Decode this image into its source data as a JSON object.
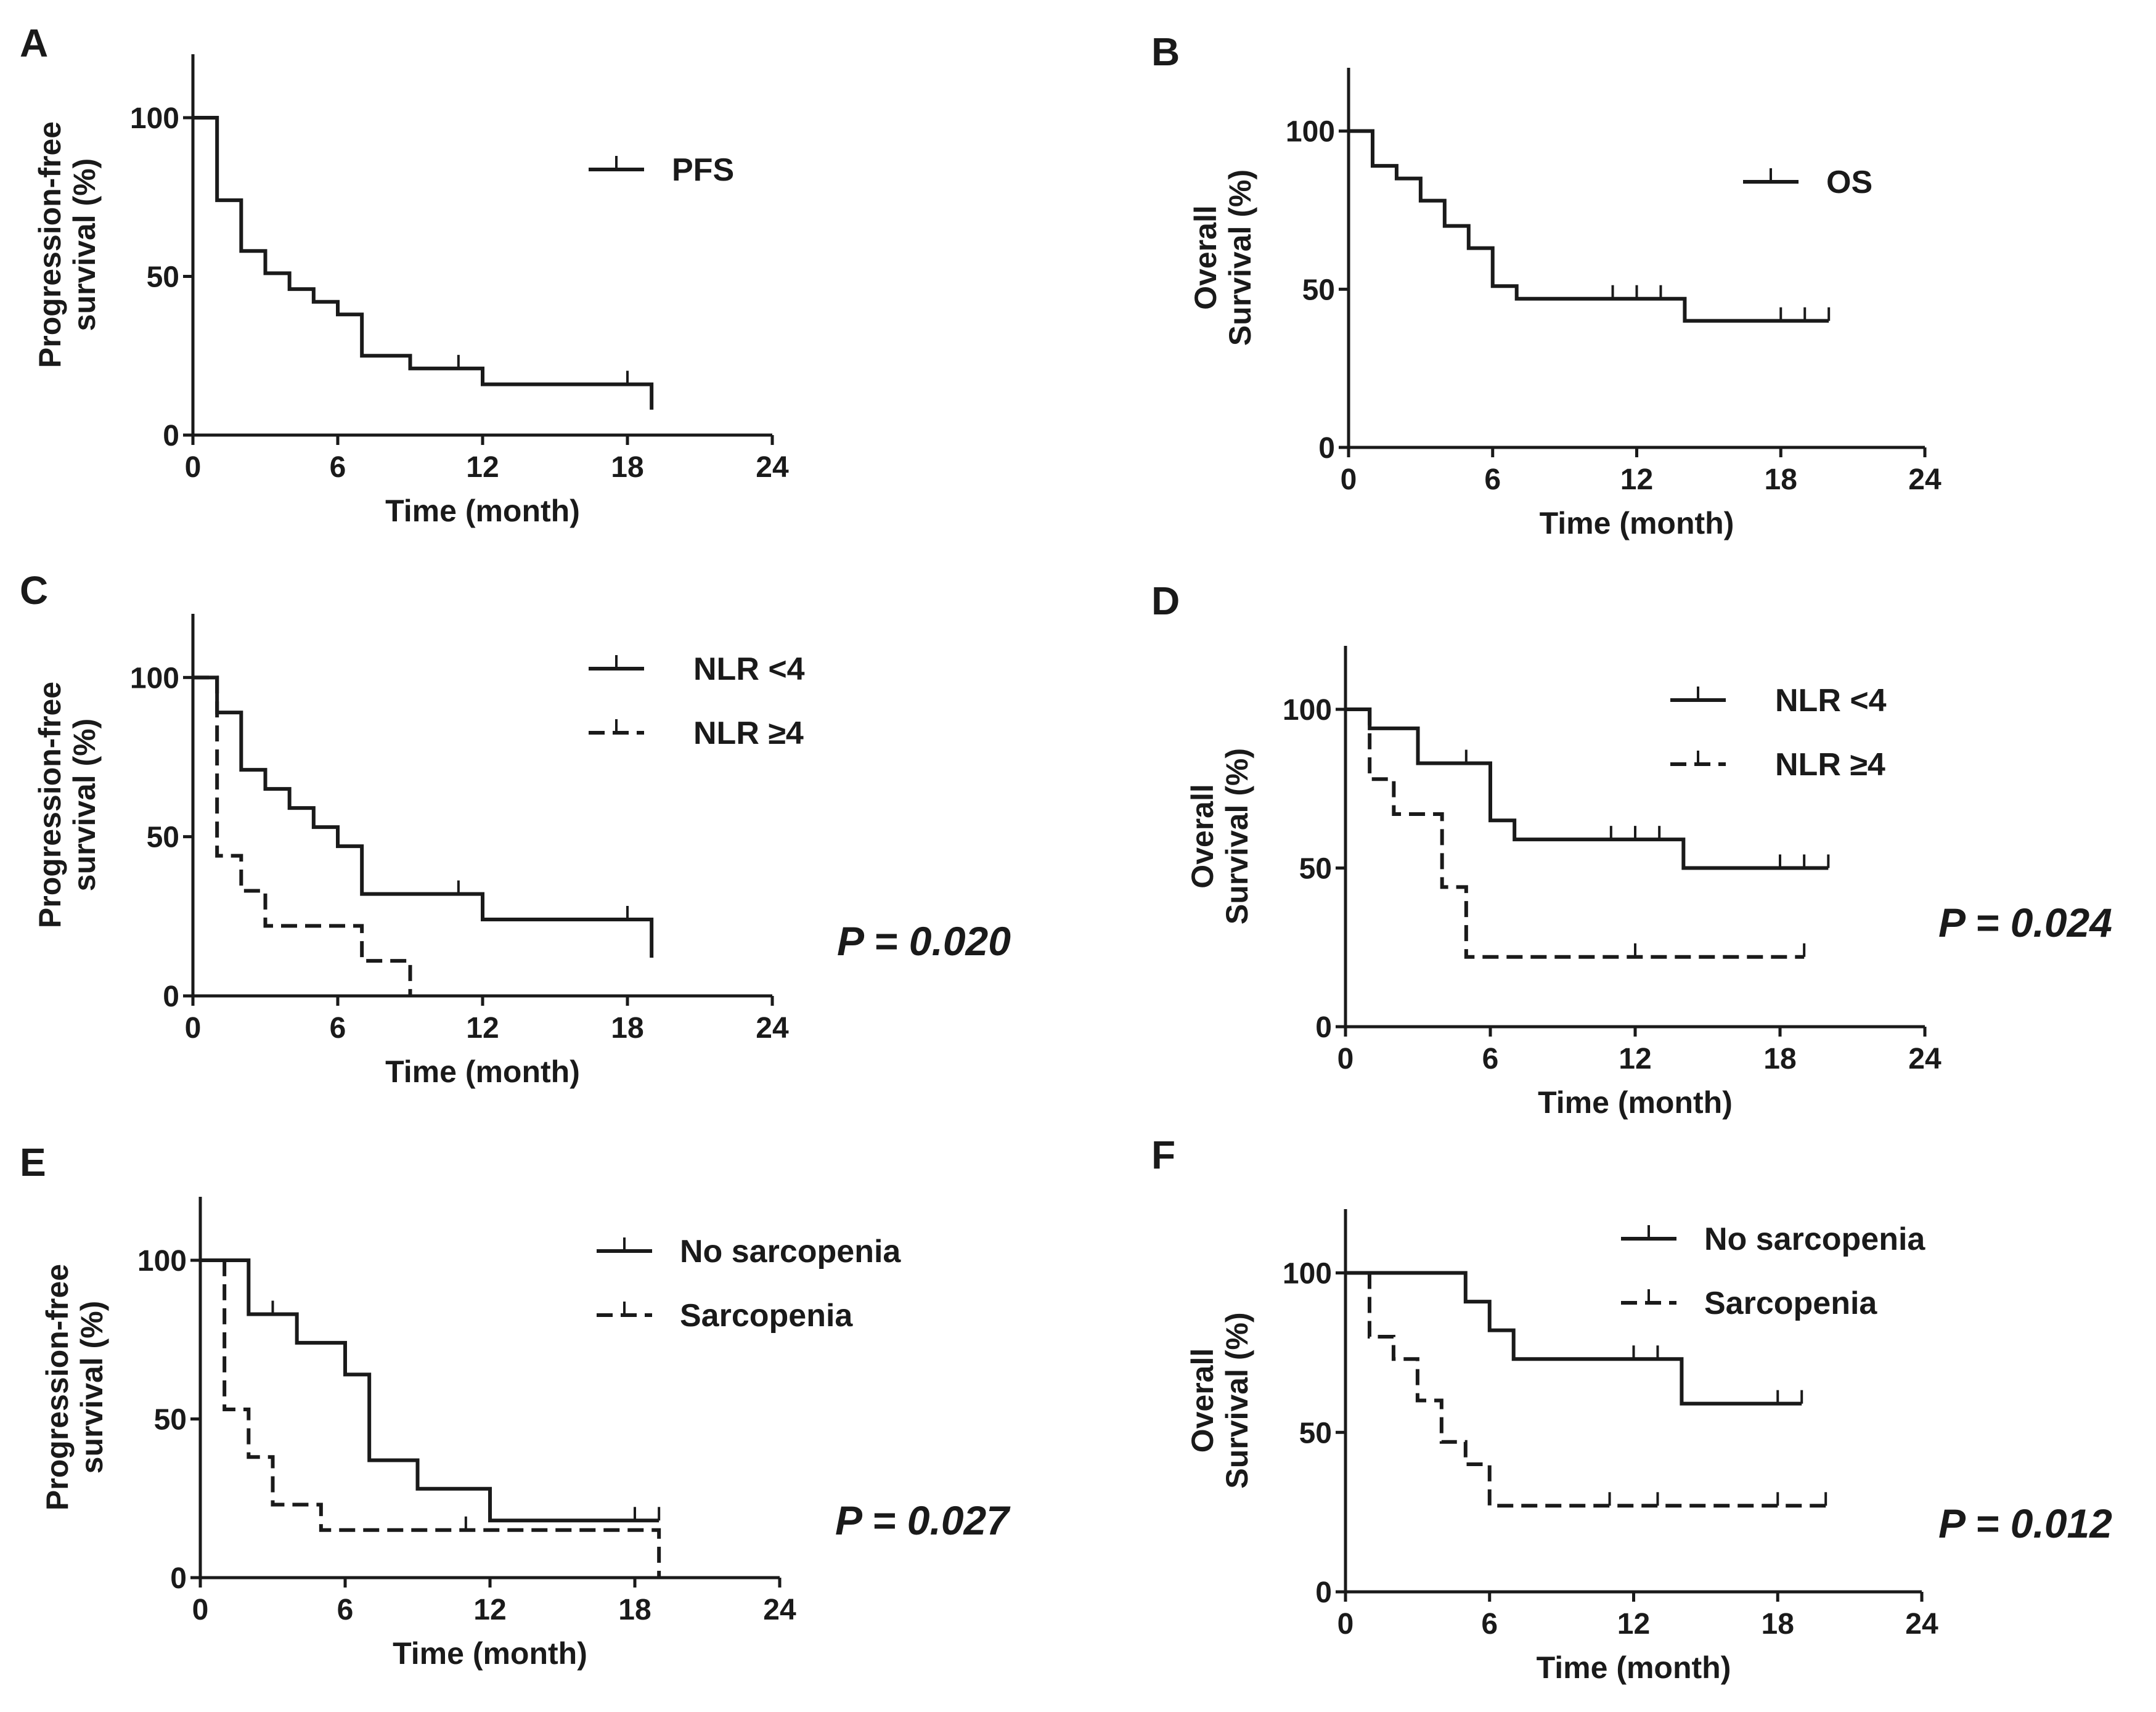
{
  "chart_data": [
    {
      "panel": "A",
      "type": "line",
      "subtype": "kaplan-meier",
      "title": "",
      "xlabel": "Time (month)",
      "ylabel_lines": [
        "Progression-free",
        "survival (%)"
      ],
      "xlim": [
        0,
        24
      ],
      "ylim": [
        0,
        120
      ],
      "xticks": [
        0,
        6,
        12,
        18,
        24
      ],
      "yticks": [
        0,
        50,
        100
      ],
      "legend_position": "top-right",
      "series": [
        {
          "name": "PFS",
          "style": "solid",
          "steps": [
            [
              0,
              100
            ],
            [
              1,
              74
            ],
            [
              2,
              58
            ],
            [
              3,
              51
            ],
            [
              4,
              46
            ],
            [
              5,
              42
            ],
            [
              6,
              38
            ],
            [
              7,
              25
            ],
            [
              9,
              21
            ],
            [
              12,
              16
            ],
            [
              19,
              16
            ]
          ],
          "end": [
            19,
            8
          ],
          "censored": [
            [
              11,
              21
            ],
            [
              18,
              16
            ]
          ]
        }
      ]
    },
    {
      "panel": "B",
      "type": "line",
      "subtype": "kaplan-meier",
      "title": "",
      "xlabel": "Time (month)",
      "ylabel_lines": [
        "Overall",
        "Survival (%)"
      ],
      "xlim": [
        0,
        24
      ],
      "ylim": [
        0,
        120
      ],
      "xticks": [
        0,
        6,
        12,
        18,
        24
      ],
      "yticks": [
        0,
        50,
        100
      ],
      "legend_position": "top-right",
      "series": [
        {
          "name": "OS",
          "style": "solid",
          "steps": [
            [
              0,
              100
            ],
            [
              1,
              89
            ],
            [
              2,
              85
            ],
            [
              3,
              78
            ],
            [
              4,
              70
            ],
            [
              5,
              63
            ],
            [
              6,
              51
            ],
            [
              7,
              47
            ],
            [
              14,
              40
            ],
            [
              20,
              40
            ]
          ],
          "censored": [
            [
              11,
              47
            ],
            [
              12,
              47
            ],
            [
              13,
              47
            ],
            [
              18,
              40
            ],
            [
              19,
              40
            ],
            [
              20,
              40
            ]
          ]
        }
      ]
    },
    {
      "panel": "C",
      "type": "line",
      "subtype": "kaplan-meier",
      "title": "",
      "xlabel": "Time (month)",
      "ylabel_lines": [
        "Progression-free",
        "survival (%)"
      ],
      "xlim": [
        0,
        24
      ],
      "ylim": [
        0,
        120
      ],
      "xticks": [
        0,
        6,
        12,
        18,
        24
      ],
      "yticks": [
        0,
        50,
        100
      ],
      "legend_position": "top-right",
      "p_value": "P = 0.020",
      "series": [
        {
          "name": "NLR <4",
          "style": "solid",
          "steps": [
            [
              0,
              100
            ],
            [
              1,
              89
            ],
            [
              2,
              71
            ],
            [
              3,
              65
            ],
            [
              4,
              59
            ],
            [
              5,
              53
            ],
            [
              6,
              47
            ],
            [
              7,
              32
            ],
            [
              12,
              24
            ],
            [
              19,
              24
            ]
          ],
          "end": [
            19,
            12
          ],
          "censored": [
            [
              11,
              32
            ],
            [
              18,
              24
            ]
          ]
        },
        {
          "name": "NLR ≥4",
          "style": "dashed",
          "steps": [
            [
              0,
              100
            ],
            [
              1,
              44
            ],
            [
              2,
              33
            ],
            [
              3,
              22
            ],
            [
              7,
              11
            ],
            [
              9,
              0
            ]
          ],
          "censored": []
        }
      ]
    },
    {
      "panel": "D",
      "type": "line",
      "subtype": "kaplan-meier",
      "title": "",
      "xlabel": "Time (month)",
      "ylabel_lines": [
        "Overall",
        "Survival (%)"
      ],
      "xlim": [
        0,
        24
      ],
      "ylim": [
        0,
        120
      ],
      "xticks": [
        0,
        6,
        12,
        18,
        24
      ],
      "yticks": [
        0,
        50,
        100
      ],
      "legend_position": "top-right",
      "p_value": "P = 0.024",
      "series": [
        {
          "name": "NLR <4",
          "style": "solid",
          "steps": [
            [
              0,
              100
            ],
            [
              1,
              94
            ],
            [
              3,
              83
            ],
            [
              6,
              65
            ],
            [
              7,
              59
            ],
            [
              14,
              50
            ],
            [
              20,
              50
            ]
          ],
          "censored": [
            [
              5,
              83
            ],
            [
              11,
              59
            ],
            [
              12,
              59
            ],
            [
              13,
              59
            ],
            [
              18,
              50
            ],
            [
              19,
              50
            ],
            [
              20,
              50
            ]
          ]
        },
        {
          "name": "NLR ≥4",
          "style": "dashed",
          "steps": [
            [
              0,
              100
            ],
            [
              1,
              78
            ],
            [
              2,
              67
            ],
            [
              4,
              44
            ],
            [
              5,
              22
            ],
            [
              19,
              22
            ]
          ],
          "censored": [
            [
              12,
              22
            ],
            [
              19,
              22
            ]
          ]
        }
      ]
    },
    {
      "panel": "E",
      "type": "line",
      "subtype": "kaplan-meier",
      "title": "",
      "xlabel": "Time (month)",
      "ylabel_lines": [
        "Progression-free",
        "survival (%)"
      ],
      "xlim": [
        0,
        24
      ],
      "ylim": [
        0,
        120
      ],
      "xticks": [
        0,
        6,
        12,
        18,
        24
      ],
      "yticks": [
        0,
        50,
        100
      ],
      "legend_position": "top-right",
      "p_value": "P = 0.027",
      "series": [
        {
          "name": "No sarcopenia",
          "style": "solid",
          "steps": [
            [
              0,
              100
            ],
            [
              2,
              83
            ],
            [
              4,
              74
            ],
            [
              6,
              64
            ],
            [
              7,
              37
            ],
            [
              9,
              28
            ],
            [
              12,
              18
            ],
            [
              19,
              18
            ]
          ],
          "censored": [
            [
              3,
              83
            ],
            [
              18,
              18
            ],
            [
              19,
              18
            ]
          ]
        },
        {
          "name": "Sarcopenia",
          "style": "dashed",
          "steps": [
            [
              0,
              100
            ],
            [
              1,
              53
            ],
            [
              2,
              38
            ],
            [
              3,
              23
            ],
            [
              5,
              15
            ],
            [
              19,
              15
            ]
          ],
          "end": [
            19,
            0
          ],
          "censored": [
            [
              11,
              15
            ]
          ]
        }
      ]
    },
    {
      "panel": "F",
      "type": "line",
      "subtype": "kaplan-meier",
      "title": "",
      "xlabel": "Time (month)",
      "ylabel_lines": [
        "Overall",
        "Survival (%)"
      ],
      "xlim": [
        0,
        24
      ],
      "ylim": [
        0,
        120
      ],
      "xticks": [
        0,
        6,
        12,
        18,
        24
      ],
      "yticks": [
        0,
        50,
        100
      ],
      "legend_position": "top-right",
      "p_value": "P = 0.012",
      "series": [
        {
          "name": "No sarcopenia",
          "style": "solid",
          "steps": [
            [
              0,
              100
            ],
            [
              5,
              91
            ],
            [
              6,
              82
            ],
            [
              7,
              73
            ],
            [
              14,
              59
            ],
            [
              19,
              59
            ]
          ],
          "censored": [
            [
              12,
              73
            ],
            [
              13,
              73
            ],
            [
              18,
              59
            ],
            [
              19,
              59
            ]
          ]
        },
        {
          "name": "Sarcopenia",
          "style": "dashed",
          "steps": [
            [
              0,
              100
            ],
            [
              1,
              80
            ],
            [
              2,
              73
            ],
            [
              3,
              60
            ],
            [
              4,
              47
            ],
            [
              5,
              40
            ],
            [
              6,
              27
            ],
            [
              20,
              27
            ]
          ],
          "censored": [
            [
              11,
              27
            ],
            [
              13,
              27
            ],
            [
              18,
              27
            ],
            [
              20,
              27
            ]
          ]
        }
      ]
    }
  ]
}
